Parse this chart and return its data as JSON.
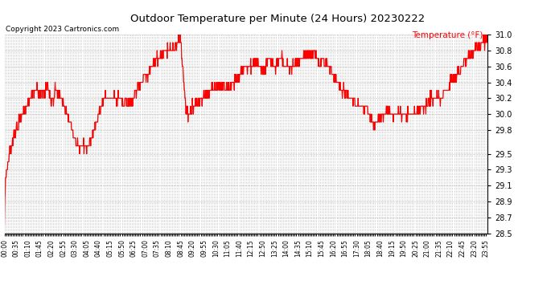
{
  "title": "Outdoor Temperature per Minute (24 Hours) 20230222",
  "copyright": "Copyright 2023 Cartronics.com",
  "legend_label": "Temperature (°F)",
  "line_color": "red",
  "shadow_color": "#333333",
  "background_color": "white",
  "grid_color": "#aaaaaa",
  "ylim": [
    28.5,
    31.0
  ],
  "yticks": [
    28.5,
    28.7,
    28.9,
    29.1,
    29.3,
    29.5,
    29.8,
    30.0,
    30.2,
    30.4,
    30.6,
    30.8,
    31.0
  ],
  "total_minutes": 1440,
  "label_every_minutes": 35
}
